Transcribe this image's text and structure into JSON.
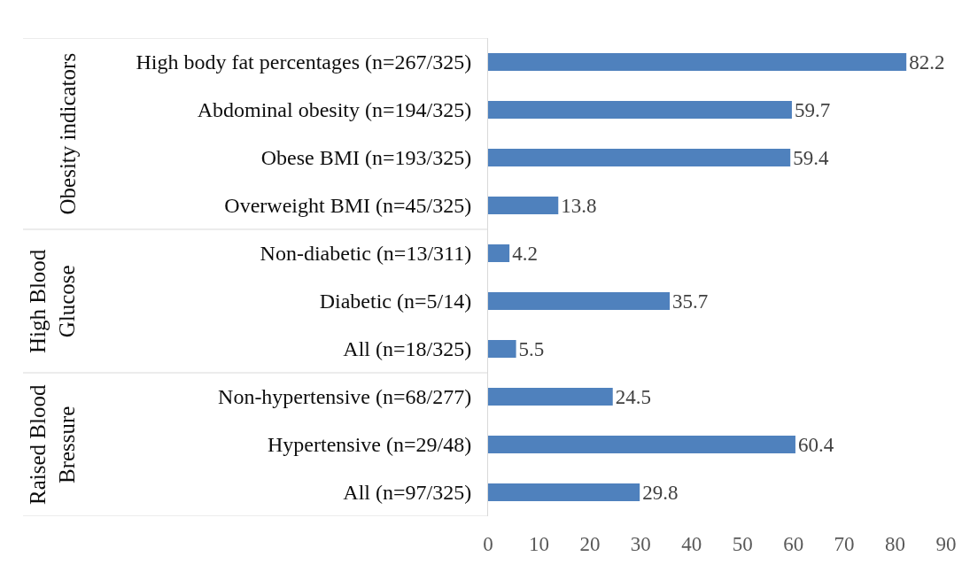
{
  "chart_data": {
    "type": "bar",
    "orientation": "horizontal",
    "categories": [
      "High body fat percentages (n=267/325)",
      "Abdominal obesity (n=194/325)",
      "Obese BMI (n=193/325)",
      "Overweight BMI (n=45/325)",
      "Non-diabetic (n=13/311)",
      "Diabetic (n=5/14)",
      "All (n=18/325)",
      "Non-hypertensive (n=68/277)",
      "Hypertensive (n=29/48)",
      "All (n=97/325)"
    ],
    "values": [
      82.2,
      59.7,
      59.4,
      13.8,
      4.2,
      35.7,
      5.5,
      24.5,
      60.4,
      29.8
    ],
    "color": "#4f81bd",
    "data_labels": true,
    "grid": false,
    "xlim": [
      0,
      90
    ],
    "xticks": [
      0,
      10,
      20,
      30,
      40,
      50,
      60,
      70,
      80,
      90
    ],
    "annotations": [
      "Obesity indicators",
      "High Blood\nGlucose",
      "Raised Blood\nBressure"
    ]
  }
}
